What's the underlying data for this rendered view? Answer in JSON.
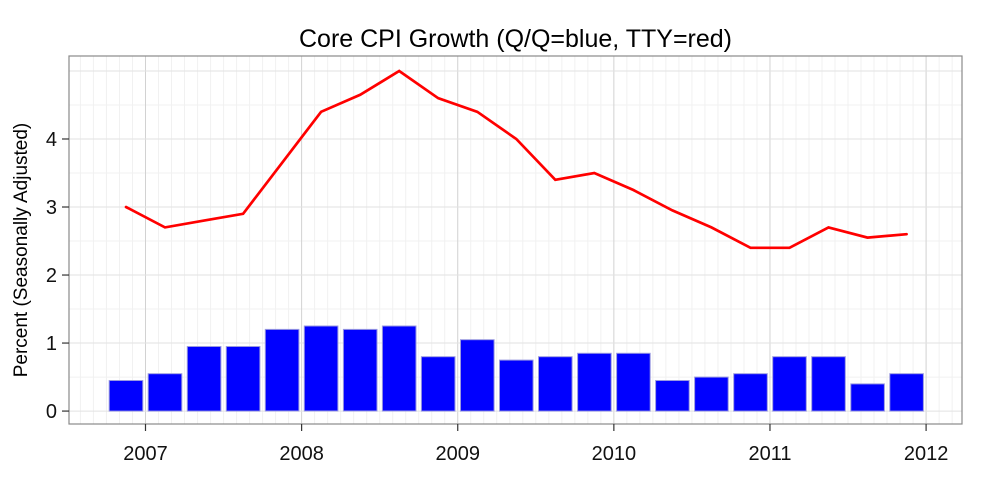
{
  "chart_data": {
    "type": "combo",
    "title": "Core CPI Growth (Q/Q=blue, TTY=red)",
    "ylabel": "Percent (Seasonally Adjusted)",
    "xlabel": "",
    "categories": [
      "2006 Q4",
      "2007 Q1",
      "2007 Q2",
      "2007 Q3",
      "2007 Q4",
      "2008 Q1",
      "2008 Q2",
      "2008 Q3",
      "2008 Q4",
      "2009 Q1",
      "2009 Q2",
      "2009 Q3",
      "2009 Q4",
      "2010 Q1",
      "2010 Q2",
      "2010 Q3",
      "2010 Q4",
      "2011 Q1",
      "2011 Q2",
      "2011 Q3",
      "2011 Q4"
    ],
    "series": [
      {
        "name": "Q/Q",
        "type": "bar",
        "color": "#0000ff",
        "values": [
          0.45,
          0.55,
          0.95,
          0.95,
          1.2,
          1.25,
          1.2,
          1.25,
          0.8,
          1.05,
          0.75,
          0.8,
          0.85,
          0.85,
          0.45,
          0.5,
          0.55,
          0.8,
          0.8,
          0.4,
          0.55
        ]
      },
      {
        "name": "TTY",
        "type": "line",
        "color": "#ff0000",
        "values": [
          3.0,
          2.7,
          2.8,
          2.9,
          3.65,
          4.4,
          4.65,
          5.0,
          4.6,
          4.4,
          4.0,
          3.4,
          3.5,
          3.25,
          2.95,
          2.7,
          2.4,
          2.4,
          2.7,
          2.55,
          2.6
        ]
      }
    ],
    "x_ticks": [
      2007,
      2008,
      2009,
      2010,
      2011,
      2012
    ],
    "y_ticks": [
      0,
      1,
      2,
      3,
      4
    ],
    "xlim": [
      2006.51,
      2012.23
    ],
    "ylim": [
      -0.19,
      5.22
    ],
    "grid": {
      "h_step": 0.5,
      "v_minor": "monthly",
      "v_major": "yearly",
      "visible": true
    },
    "legend": "in-title",
    "colors": {
      "bar": "#0000ff",
      "bar_border": "#9a9ae0",
      "line": "#ff0000",
      "grid_minor": "#f1f1f1",
      "grid_major_h": "#e2e2e2",
      "grid_major_v": "#d2d2d2",
      "box": "#8a8a8a",
      "tick": "#333333",
      "text": "#111111"
    }
  }
}
